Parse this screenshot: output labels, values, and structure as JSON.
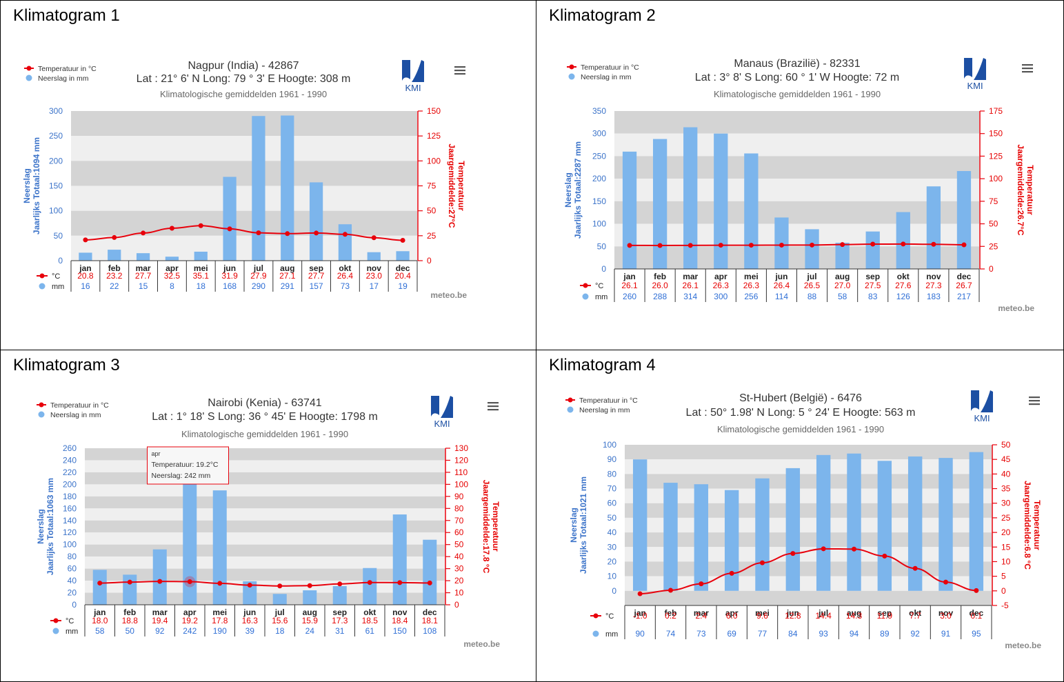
{
  "panels": [
    {
      "panel_title": "Klimatogram 1",
      "chart_data": {
        "type": "bar",
        "title": "Nagpur (India) - 42867",
        "subtitle_line": "Lat : 21° 6' N Long: 79 ° 3' E Hoogte: 308 m",
        "period": "Klimatologische gemiddelden 1961 - 1990",
        "legend": [
          "Temperatuur in °C",
          "Neerslag in mm"
        ],
        "ylabel_left": [
          "Neerslag",
          "Jaarlijks Totaal:1094 mm"
        ],
        "ylabel_right": [
          "Temperatuur",
          "Jaargemiddelde:27°C"
        ],
        "ylim_left": [
          0,
          300
        ],
        "yticks_left": [
          0,
          50,
          100,
          150,
          200,
          250,
          300
        ],
        "ylim_right": [
          0,
          150
        ],
        "yticks_right": [
          0,
          25,
          50,
          75,
          100,
          125,
          150
        ],
        "categories": [
          "jan",
          "feb",
          "mar",
          "apr",
          "mei",
          "jun",
          "jul",
          "aug",
          "sep",
          "okt",
          "nov",
          "dec"
        ],
        "series": [
          {
            "name": "Neerslag in mm",
            "unit_label": "mm",
            "values": [
              16,
              22,
              15,
              8,
              18,
              168,
              290,
              291,
              157,
              73,
              17,
              19
            ]
          },
          {
            "name": "Temperatuur in °C",
            "unit_label": "°C",
            "values": [
              20.8,
              23.2,
              27.7,
              32.5,
              35.1,
              31.9,
              27.9,
              27.1,
              27.7,
              26.4,
              23.0,
              20.4
            ]
          }
        ],
        "credit": "meteo.be",
        "logo_text": "KMI"
      }
    },
    {
      "panel_title": "Klimatogram 2",
      "chart_data": {
        "type": "bar",
        "title": "Manaus (Brazilië) - 82331",
        "subtitle_line": "Lat : 3° 8' S Long: 60 ° 1' W Hoogte: 72 m",
        "period": "Klimatologische gemiddelden 1961 - 1990",
        "legend": [
          "Temperatuur in °C",
          "Neerslag in mm"
        ],
        "ylabel_left": [
          "Neerslag",
          "Jaarlijks Totaal:2287 mm"
        ],
        "ylabel_right": [
          "Temperatuur",
          "Jaargemiddelde:26.7°C"
        ],
        "ylim_left": [
          0,
          350
        ],
        "yticks_left": [
          0,
          50,
          100,
          150,
          200,
          250,
          300,
          350
        ],
        "ylim_right": [
          0,
          175
        ],
        "yticks_right": [
          0,
          25,
          50,
          75,
          100,
          125,
          150,
          175
        ],
        "categories": [
          "jan",
          "feb",
          "mar",
          "apr",
          "mei",
          "jun",
          "jul",
          "aug",
          "sep",
          "okt",
          "nov",
          "dec"
        ],
        "series": [
          {
            "name": "Neerslag in mm",
            "unit_label": "mm",
            "values": [
              260,
              288,
              314,
              300,
              256,
              114,
              88,
              58,
              83,
              126,
              183,
              217
            ]
          },
          {
            "name": "Temperatuur in °C",
            "unit_label": "°C",
            "values": [
              26.1,
              26.0,
              26.1,
              26.3,
              26.3,
              26.4,
              26.5,
              27.0,
              27.5,
              27.6,
              27.3,
              26.7
            ]
          }
        ],
        "credit": "meteo.be",
        "logo_text": "KMI"
      }
    },
    {
      "panel_title": "Klimatogram 3",
      "chart_data": {
        "type": "bar",
        "title": "Nairobi (Kenia) - 63741",
        "subtitle_line": "Lat : 1° 18' S Long: 36 ° 45' E Hoogte: 1798 m",
        "period": "Klimatologische gemiddelden 1961 - 1990",
        "legend": [
          "Temperatuur in °C",
          "Neerslag in mm"
        ],
        "ylabel_left": [
          "Neerslag",
          "Jaarlijks Totaal:1063 mm"
        ],
        "ylabel_right": [
          "Temperatuur",
          "Jaargemiddelde:17.8 °C"
        ],
        "ylim_left": [
          0,
          260
        ],
        "yticks_left": [
          0,
          20,
          40,
          60,
          80,
          100,
          120,
          140,
          160,
          180,
          200,
          220,
          240,
          260
        ],
        "ylim_right": [
          0,
          130
        ],
        "yticks_right": [
          0,
          10,
          20,
          30,
          40,
          50,
          60,
          70,
          80,
          90,
          100,
          110,
          120,
          130
        ],
        "categories": [
          "jan",
          "feb",
          "mar",
          "apr",
          "mei",
          "jun",
          "jul",
          "aug",
          "sep",
          "okt",
          "nov",
          "dec"
        ],
        "series": [
          {
            "name": "Neerslag in mm",
            "unit_label": "mm",
            "values": [
              58,
              50,
              92,
              242,
              190,
              39,
              18,
              24,
              31,
              61,
              150,
              108
            ]
          },
          {
            "name": "Temperatuur in °C",
            "unit_label": "°C",
            "values": [
              18.0,
              18.8,
              19.4,
              19.2,
              17.8,
              16.3,
              15.6,
              15.9,
              17.3,
              18.5,
              18.4,
              18.1
            ]
          }
        ],
        "tooltip": {
          "month": "apr",
          "line1": "Temperatuur: 19.2°C",
          "line2": "Neerslag: 242 mm"
        },
        "credit": "meteo.be",
        "logo_text": "KMI"
      }
    },
    {
      "panel_title": "Klimatogram 4",
      "chart_data": {
        "type": "bar",
        "title": "St-Hubert (België) - 6476",
        "subtitle_line": "Lat : 50° 1.98' N Long: 5 ° 24' E Hoogte: 563 m",
        "period": "Klimatologische gemiddelden 1961 - 1990",
        "legend": [
          "Temperatuur in °C",
          "Neerslag in mm"
        ],
        "ylabel_left": [
          "Neerslag",
          "Jaarlijks Totaal:1021 mm"
        ],
        "ylabel_right": [
          "Temperatuur",
          "Jaargemiddelde:6.8 °C"
        ],
        "ylim_left": [
          -10,
          100
        ],
        "yticks_left": [
          0,
          10,
          20,
          30,
          40,
          50,
          60,
          70,
          80,
          90,
          100
        ],
        "ylim_right": [
          -5,
          50
        ],
        "yticks_right": [
          -5,
          0,
          5,
          10,
          15,
          20,
          25,
          30,
          35,
          40,
          45,
          50
        ],
        "categories": [
          "jan",
          "feb",
          "mar",
          "apr",
          "mei",
          "jun",
          "jul",
          "aug",
          "sep",
          "okt",
          "nov",
          "dec"
        ],
        "series": [
          {
            "name": "Neerslag in mm",
            "unit_label": "mm",
            "values": [
              90,
              74,
              73,
              69,
              77,
              84,
              93,
              94,
              89,
              92,
              91,
              95
            ]
          },
          {
            "name": "Temperatuur in °C",
            "unit_label": "°C",
            "values": [
              -1.0,
              0.2,
              2.4,
              6.0,
              9.6,
              12.8,
              14.4,
              14.3,
              11.9,
              7.7,
              3.0,
              0.1
            ]
          }
        ],
        "credit": "meteo.be",
        "logo_text": "KMI"
      }
    }
  ]
}
